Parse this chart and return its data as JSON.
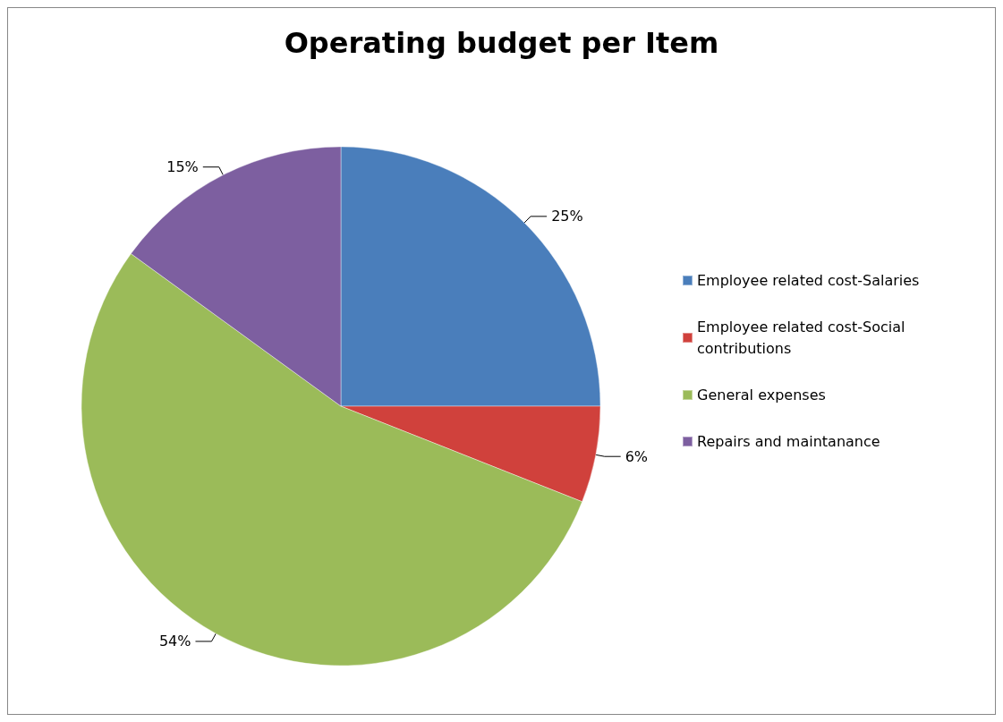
{
  "chart_data": {
    "type": "pie",
    "title": "Operating budget per Item",
    "categories": [
      "Employee related cost-Salaries",
      "Employee related cost-Social contributions",
      "General expenses",
      "Repairs and maintanance"
    ],
    "values": [
      25,
      6,
      54,
      15
    ],
    "colors": [
      "#4a7ebb",
      "#d0413c",
      "#9bbb59",
      "#7d5fa0"
    ],
    "value_labels": [
      "25%",
      "6%",
      "54%",
      "15%"
    ],
    "legend": "right"
  }
}
